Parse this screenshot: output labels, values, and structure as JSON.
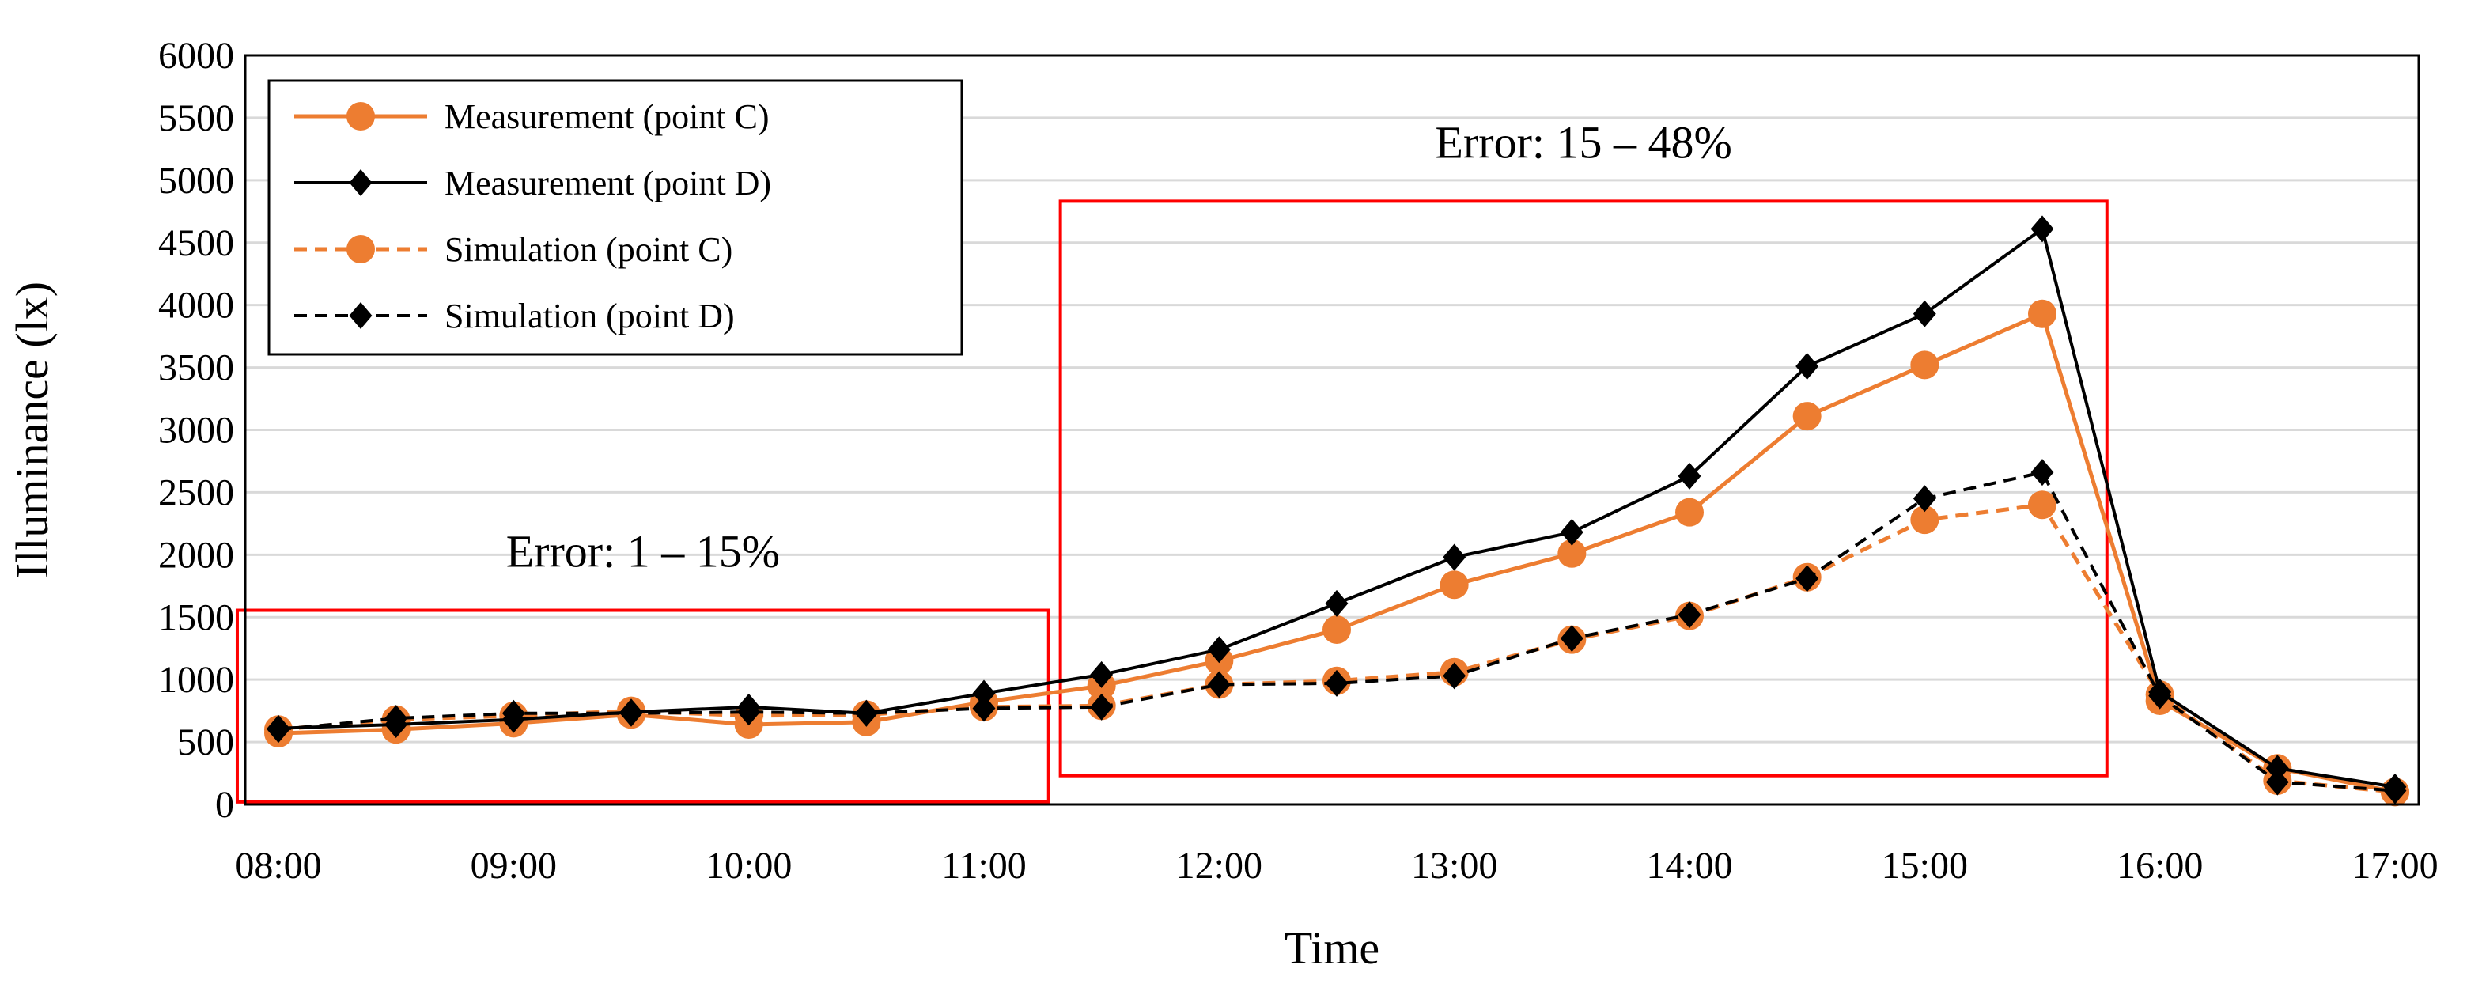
{
  "chart_data": {
    "type": "line",
    "title": "",
    "xlabel": "Time",
    "ylabel": "Illuminance (lx)",
    "ylim": [
      0,
      6000
    ],
    "yticks": [
      0,
      500,
      1000,
      1500,
      2000,
      2500,
      3000,
      3500,
      4000,
      4500,
      5000,
      5500,
      6000
    ],
    "x": [
      "08:00",
      "08:30",
      "09:00",
      "09:30",
      "10:00",
      "10:30",
      "11:00",
      "11:30",
      "12:00",
      "12:30",
      "13:00",
      "13:30",
      "14:00",
      "14:30",
      "15:00",
      "15:30",
      "16:00",
      "16:30",
      "17:00"
    ],
    "xtick_labels": [
      "08:00",
      "09:00",
      "10:00",
      "11:00",
      "12:00",
      "13:00",
      "14:00",
      "15:00",
      "16:00",
      "17:00"
    ],
    "grid": "horizontal",
    "legend_position": "top-left",
    "series": [
      {
        "name": "Measurement  (point C)",
        "color": "#ED7D31",
        "line_style": "solid",
        "marker": "circle",
        "values": [
          570,
          600,
          650,
          720,
          640,
          660,
          820,
          950,
          1150,
          1400,
          1760,
          2010,
          2340,
          3110,
          3520,
          3930,
          830,
          290,
          100
        ]
      },
      {
        "name": "Measurement  (point D)",
        "color": "#000000",
        "line_style": "solid",
        "marker": "diamond",
        "values": [
          610,
          640,
          680,
          740,
          780,
          730,
          890,
          1040,
          1240,
          1610,
          1980,
          2180,
          2630,
          3510,
          3930,
          4610,
          900,
          290,
          140
        ]
      },
      {
        "name": "Simulation  (point C)",
        "color": "#ED7D31",
        "line_style": "dashed",
        "marker": "circle",
        "values": [
          600,
          680,
          710,
          750,
          710,
          720,
          780,
          790,
          960,
          990,
          1060,
          1320,
          1510,
          1820,
          2280,
          2400,
          880,
          190,
          100
        ]
      },
      {
        "name": "Simulation  (point D)",
        "color": "#000000",
        "line_style": "dashed",
        "marker": "diamond",
        "values": [
          600,
          690,
          730,
          730,
          740,
          730,
          770,
          780,
          960,
          970,
          1030,
          1330,
          1520,
          1810,
          2450,
          2660,
          870,
          180,
          110
        ]
      }
    ],
    "annotations": [
      {
        "text": "Error: 1 – 15%",
        "color": "#FF0000",
        "from": "08:00",
        "to": "11:00"
      },
      {
        "text": "Error: 15 – 48%",
        "color": "#FF0000",
        "from": "11:30",
        "to": "15:30"
      }
    ]
  }
}
